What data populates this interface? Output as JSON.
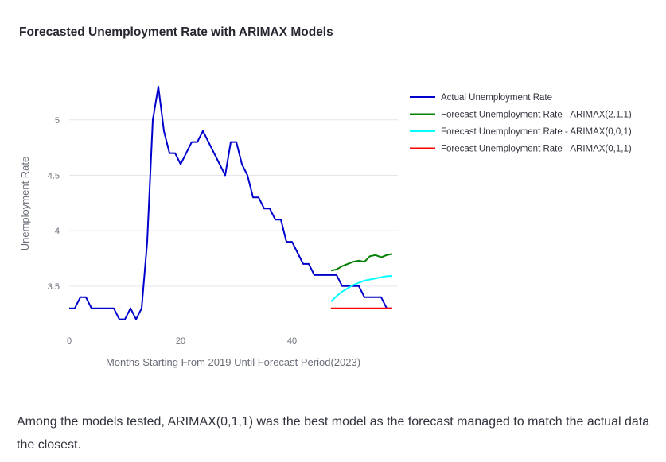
{
  "title": "Forecasted Unemployment Rate with ARIMAX Models",
  "summary": "Among the models tested, ARIMAX(0,1,1) was the best model as the forecast managed to match the actual data the closest.",
  "chart_data": {
    "type": "line",
    "xlabel": "Months Starting From 2019 Until Forecast Period(2023)",
    "ylabel": "Unemployment Rate",
    "xlim": [
      0,
      59
    ],
    "ylim": [
      3.14,
      5.4
    ],
    "xticks": [
      0,
      20,
      40
    ],
    "yticks": [
      3.5,
      4,
      4.5,
      5
    ],
    "grid": true,
    "legend_position": "top-right",
    "series": [
      {
        "name": "Actual Unemployment Rate",
        "color": "#0000cc",
        "x": [
          0,
          1,
          2,
          3,
          4,
          5,
          6,
          7,
          8,
          9,
          10,
          11,
          12,
          13,
          14,
          15,
          16,
          17,
          18,
          19,
          20,
          21,
          22,
          23,
          24,
          25,
          26,
          27,
          28,
          29,
          30,
          31,
          32,
          33,
          34,
          35,
          36,
          37,
          38,
          39,
          40,
          41,
          42,
          43,
          44,
          45,
          46,
          47,
          48,
          49,
          50,
          51,
          52,
          53,
          54,
          55,
          56,
          57,
          58
        ],
        "values": [
          3.3,
          3.3,
          3.4,
          3.4,
          3.3,
          3.3,
          3.3,
          3.3,
          3.3,
          3.2,
          3.2,
          3.3,
          3.2,
          3.3,
          3.9,
          5.0,
          5.3,
          4.9,
          4.7,
          4.7,
          4.6,
          4.7,
          4.8,
          4.8,
          4.9,
          4.8,
          4.7,
          4.6,
          4.5,
          4.8,
          4.8,
          4.6,
          4.5,
          4.3,
          4.3,
          4.2,
          4.2,
          4.1,
          4.1,
          3.9,
          3.9,
          3.8,
          3.7,
          3.7,
          3.6,
          3.6,
          3.6,
          3.6,
          3.6,
          3.5,
          3.5,
          3.5,
          3.5,
          3.4,
          3.4,
          3.4,
          3.4,
          3.3,
          3.3
        ]
      },
      {
        "name": "Forecast Unemployment Rate - ARIMAX(2,1,1)",
        "color": "#008000",
        "x": [
          47,
          48,
          49,
          50,
          51,
          52,
          53,
          54,
          55,
          56,
          57,
          58
        ],
        "values": [
          3.64,
          3.65,
          3.68,
          3.7,
          3.72,
          3.73,
          3.72,
          3.77,
          3.78,
          3.76,
          3.78,
          3.79
        ]
      },
      {
        "name": "Forecast Unemployment Rate - ARIMAX(0,0,1)",
        "color": "#00ffff",
        "x": [
          47,
          48,
          49,
          50,
          51,
          52,
          53,
          54,
          55,
          56,
          57,
          58
        ],
        "values": [
          3.36,
          3.41,
          3.45,
          3.48,
          3.51,
          3.53,
          3.55,
          3.56,
          3.57,
          3.58,
          3.59,
          3.59
        ]
      },
      {
        "name": "Forecast Unemployment Rate - ARIMAX(0,1,1)",
        "color": "#ff0000",
        "x": [
          47,
          48,
          49,
          50,
          51,
          52,
          53,
          54,
          55,
          56,
          57,
          58
        ],
        "values": [
          3.3,
          3.3,
          3.3,
          3.3,
          3.3,
          3.3,
          3.3,
          3.3,
          3.3,
          3.3,
          3.3,
          3.3
        ]
      }
    ]
  }
}
